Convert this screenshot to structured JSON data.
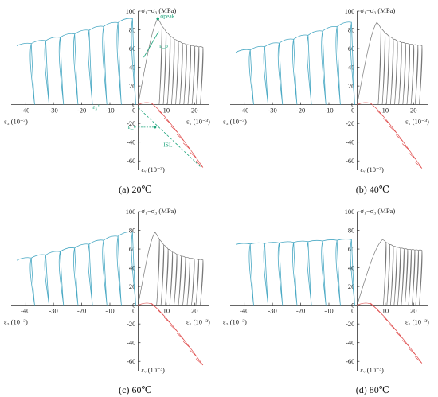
{
  "chart_data": [
    {
      "type": "line",
      "caption": "(a) 20℃",
      "x_axis_left_label": "ε₃ (10⁻³)",
      "x_axis_right_label": "ε₁ (10⁻³)",
      "y_axis_top_label": "σ₁−σ₃ (MPa)",
      "y_axis_bottom_label": "εᵥ (10⁻³)",
      "xlim": [
        -45,
        25
      ],
      "ylim": [
        -70,
        100
      ],
      "x_ticks": [
        "-40",
        "-30",
        "-20",
        "-10",
        "0",
        "10",
        "20"
      ],
      "y_ticks": [
        "100",
        "80",
        "60",
        "40",
        "20",
        "0",
        "-20",
        "-40",
        "-60"
      ],
      "annotations": [
        "σpeak",
        "ε_p",
        "ε₃",
        "ε_v",
        "ISL"
      ],
      "colors": {
        "lateral": "#4aa9c4",
        "axial": "#777777",
        "volumetric": "#e05050",
        "annotation": "#1aa37a"
      },
      "peak_stress": 92,
      "residual_stress": 60,
      "start_stress": 63,
      "lateral_min": -43,
      "axial_peak_strain": 7,
      "axial_end_strain": 23,
      "vol_end": -67
    },
    {
      "type": "line",
      "caption": "(b) 40℃",
      "x_axis_left_label": "ε₃ (10⁻³)",
      "x_axis_right_label": "ε₁ (10⁻³)",
      "y_axis_top_label": "σ₁−σ₃ (MPa)",
      "y_axis_bottom_label": "εᵥ (10⁻³)",
      "xlim": [
        -45,
        25
      ],
      "ylim": [
        -70,
        100
      ],
      "x_ticks": [
        "-40",
        "-30",
        "-20",
        "-10",
        "0",
        "10",
        "20"
      ],
      "y_ticks": [
        "100",
        "80",
        "60",
        "40",
        "20",
        "0",
        "-20",
        "-40",
        "-60"
      ],
      "colors": {
        "lateral": "#4aa9c4",
        "axial": "#777777",
        "volumetric": "#e05050"
      },
      "peak_stress": 88,
      "residual_stress": 62,
      "start_stress": 56,
      "lateral_min": -43,
      "axial_peak_strain": 7,
      "axial_end_strain": 23,
      "vol_end": -68
    },
    {
      "type": "line",
      "caption": "(c) 60℃",
      "x_axis_left_label": "ε₃ (10⁻³)",
      "x_axis_right_label": "ε₁ (10⁻³)",
      "y_axis_top_label": "σ₁−σ₃ (MPa)",
      "y_axis_bottom_label": "εᵥ (10⁻³)",
      "xlim": [
        -45,
        25
      ],
      "ylim": [
        -70,
        100
      ],
      "x_ticks": [
        "-40",
        "-30",
        "-20",
        "-10",
        "0",
        "10",
        "20"
      ],
      "y_ticks": [
        "100",
        "80",
        "60",
        "40",
        "20",
        "0",
        "-20",
        "-40",
        "-60"
      ],
      "colors": {
        "lateral": "#4aa9c4",
        "axial": "#777777",
        "volumetric": "#e05050"
      },
      "peak_stress": 78,
      "residual_stress": 47,
      "start_stress": 48,
      "lateral_min": -43,
      "axial_peak_strain": 6,
      "axial_end_strain": 23,
      "vol_end": -64
    },
    {
      "type": "line",
      "caption": "(d) 80℃",
      "x_axis_left_label": "ε₃ (10⁻³)",
      "x_axis_right_label": "ε₁ (10⁻³)",
      "y_axis_top_label": "σ₁−σ₃ (MPa)",
      "y_axis_bottom_label": "εᵥ (10⁻³)",
      "xlim": [
        -45,
        25
      ],
      "ylim": [
        -70,
        100
      ],
      "x_ticks": [
        "-40",
        "-30",
        "-20",
        "-10",
        "0",
        "10",
        "20"
      ],
      "y_ticks": [
        "100",
        "80",
        "60",
        "40",
        "20",
        "0",
        "-20",
        "-40",
        "-60"
      ],
      "colors": {
        "lateral": "#4aa9c4",
        "axial": "#777777",
        "volumetric": "#e05050"
      },
      "peak_stress": 70,
      "residual_stress": 58,
      "start_stress": 65,
      "lateral_min": -43,
      "axial_peak_strain": 9,
      "axial_end_strain": 23,
      "vol_end": -62
    }
  ]
}
